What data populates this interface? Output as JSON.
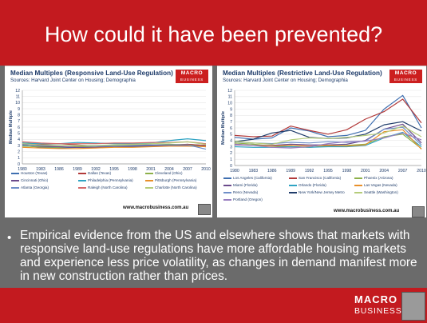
{
  "slide": {
    "title": "How could it have been prevented?",
    "bullet": "Empirical evidence from the US and elsewhere shows that markets with responsive land-use regulations have more affordable housing markets and experience less price volatility, as changes in demand manifest more in new construction rather than prices.",
    "footer_logo_line1": "MACRO",
    "footer_logo_line2": "BUSINESS"
  },
  "chart_data": [
    {
      "type": "line",
      "title": "Median Multiples (Responsive Land-Use Regulation)",
      "source": "Sources: Harvard Joint Center on Housing; Demographia",
      "logo": "MACRO",
      "logo_sub": "BUSINESS",
      "url": "www.macrobusiness.com.au",
      "ylabel": "Median Multiple",
      "ylim": [
        0,
        12
      ],
      "yticks": [
        "0",
        "1",
        "2",
        "3",
        "4",
        "5",
        "6",
        "7",
        "8",
        "9",
        "10",
        "11",
        "12"
      ],
      "x": [
        1980,
        1983,
        1986,
        1989,
        1992,
        1995,
        1998,
        2001,
        2004,
        2007,
        2010
      ],
      "xticks": [
        "1980",
        "1983",
        "1986",
        "1989",
        "1992",
        "1995",
        "1998",
        "2001",
        "2004",
        "2007",
        "2010"
      ],
      "series": [
        {
          "name": "Houston (Texas)",
          "color": "#3f6fb0",
          "values": [
            3.0,
            2.7,
            2.6,
            2.7,
            2.7,
            2.8,
            2.8,
            2.9,
            3.0,
            3.2,
            3.0
          ]
        },
        {
          "name": "Dallas (Texas)",
          "color": "#b23a3a",
          "values": [
            3.4,
            3.2,
            3.3,
            3.1,
            2.9,
            2.9,
            3.0,
            3.1,
            3.1,
            3.2,
            3.0
          ]
        },
        {
          "name": "Cleveland (Ohio)",
          "color": "#8db04a",
          "values": [
            2.9,
            2.8,
            2.7,
            2.8,
            2.9,
            3.0,
            3.1,
            3.1,
            3.2,
            3.1,
            2.8
          ]
        },
        {
          "name": "Cincinnati (Ohio)",
          "color": "#6b4a8c",
          "values": [
            3.2,
            2.9,
            2.8,
            2.7,
            2.7,
            2.8,
            2.9,
            3.0,
            3.0,
            3.0,
            2.8
          ]
        },
        {
          "name": "Philadelphia (Pennsylvania)",
          "color": "#2fa4c4",
          "values": [
            3.4,
            3.3,
            3.3,
            3.5,
            3.4,
            3.3,
            3.3,
            3.4,
            3.8,
            4.1,
            3.8
          ]
        },
        {
          "name": "Pittsburgh (Pennsylvania)",
          "color": "#e8902a",
          "values": [
            2.7,
            2.6,
            2.5,
            2.5,
            2.6,
            2.7,
            2.7,
            2.8,
            2.9,
            2.9,
            2.8
          ]
        },
        {
          "name": "Atlanta (Georgia)",
          "color": "#6f8fc8",
          "values": [
            3.1,
            3.0,
            3.0,
            3.0,
            2.9,
            2.9,
            3.0,
            3.1,
            3.1,
            3.1,
            2.4
          ]
        },
        {
          "name": "Raleigh (North Carolina)",
          "color": "#d46a6a",
          "values": [
            3.6,
            3.4,
            3.3,
            3.3,
            3.3,
            3.4,
            3.4,
            3.5,
            3.5,
            3.6,
            3.3
          ]
        },
        {
          "name": "Charlotte (North Carolina)",
          "color": "#b5cc7a",
          "values": [
            3.3,
            3.1,
            3.0,
            3.0,
            3.0,
            3.1,
            3.2,
            3.3,
            3.4,
            3.6,
            3.2
          ]
        }
      ]
    },
    {
      "type": "line",
      "title": "Median Multiples (Restrictive Land-Use Regulation)",
      "source": "Sources: Harvard Joint Center on Housing; Demographia",
      "logo": "MACRO",
      "logo_sub": "BUSINESS",
      "url": "www.macrobusiness.com.au",
      "ylabel": "Median Multiple",
      "ylim": [
        0,
        12
      ],
      "yticks": [
        "0",
        "1",
        "2",
        "3",
        "4",
        "5",
        "6",
        "7",
        "8",
        "9",
        "10",
        "11",
        "12"
      ],
      "x": [
        1980,
        1983,
        1986,
        1989,
        1992,
        1995,
        1998,
        2001,
        2004,
        2007,
        2010
      ],
      "xticks": [
        "1980",
        "1983",
        "1986",
        "1989",
        "1992",
        "1995",
        "1998",
        "2001",
        "2004",
        "2007",
        "2010"
      ],
      "series": [
        {
          "name": "Los Angeles (California)",
          "color": "#3f6fb0",
          "values": [
            4.5,
            4.2,
            4.4,
            6.0,
            5.5,
            4.6,
            4.8,
            5.6,
            9.0,
            11.2,
            6.0
          ]
        },
        {
          "name": "San Francisco (California)",
          "color": "#b23a3a",
          "values": [
            4.8,
            4.6,
            4.7,
            6.3,
            5.6,
            5.0,
            5.7,
            7.4,
            8.6,
            10.6,
            6.8
          ]
        },
        {
          "name": "Phoenix (Arizona)",
          "color": "#8db04a",
          "values": [
            3.6,
            3.4,
            3.1,
            3.0,
            2.9,
            3.1,
            3.2,
            3.4,
            4.6,
            5.0,
            2.7
          ]
        },
        {
          "name": "Miami (Florida)",
          "color": "#6b4a8c",
          "values": [
            3.3,
            3.2,
            3.2,
            3.4,
            3.3,
            3.3,
            3.4,
            4.0,
            5.8,
            6.6,
            3.6
          ]
        },
        {
          "name": "Orlando (Florida)",
          "color": "#2fa4c4",
          "values": [
            3.0,
            2.9,
            2.9,
            3.0,
            2.9,
            3.0,
            3.0,
            3.2,
            4.4,
            5.3,
            3.0
          ]
        },
        {
          "name": "Las Vegas (Nevada)",
          "color": "#e8902a",
          "values": [
            3.4,
            3.2,
            3.1,
            3.2,
            3.1,
            3.2,
            3.1,
            3.3,
            5.4,
            5.7,
            2.6
          ]
        },
        {
          "name": "Reno (Nevada)",
          "color": "#6f8fc8",
          "values": [
            3.8,
            3.6,
            3.5,
            3.7,
            3.6,
            3.8,
            3.7,
            3.9,
            5.8,
            6.1,
            3.3
          ]
        },
        {
          "name": "New York/New Jersey Metro",
          "color": "#1f3c6a",
          "values": [
            3.8,
            4.2,
            5.2,
            5.6,
            4.5,
            4.3,
            4.4,
            5.0,
            6.5,
            7.0,
            5.5
          ]
        },
        {
          "name": "Seattle (Washington)",
          "color": "#b5cc7a",
          "values": [
            3.9,
            3.6,
            3.4,
            4.1,
            4.4,
            4.3,
            4.5,
            4.8,
            5.2,
            6.3,
            4.6
          ]
        },
        {
          "name": "Portland (Oregon)",
          "color": "#9a7fc0",
          "values": [
            3.4,
            3.2,
            2.9,
            2.8,
            3.0,
            3.5,
            3.8,
            3.9,
            4.4,
            5.2,
            4.1
          ]
        }
      ]
    }
  ]
}
